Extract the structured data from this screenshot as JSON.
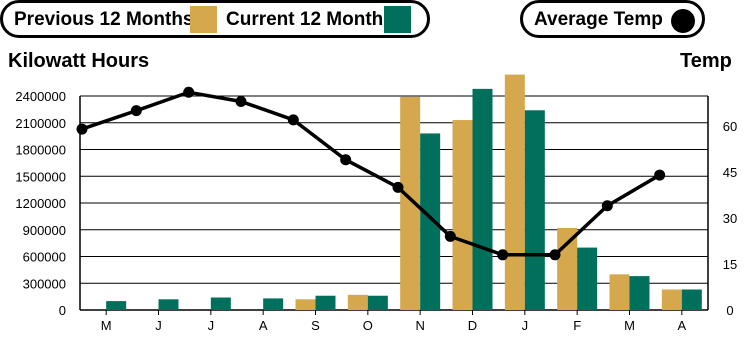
{
  "legend": {
    "previous_label": "Previous 12 Months",
    "current_label": "Current 12 Months",
    "average_label": "Average Temp"
  },
  "colors": {
    "previous": "#d6a84e",
    "current": "#00705c",
    "line": "#000000"
  },
  "chart_data": {
    "type": "bar",
    "categories": [
      "M",
      "J",
      "J",
      "A",
      "S",
      "O",
      "N",
      "D",
      "J",
      "F",
      "M",
      "A"
    ],
    "series": [
      {
        "name": "Previous 12 Months",
        "values": [
          0,
          0,
          0,
          0,
          120000,
          170000,
          2390000,
          2130000,
          2640000,
          920000,
          400000,
          230000
        ]
      },
      {
        "name": "Current 12 Months",
        "values": [
          100000,
          120000,
          140000,
          130000,
          160000,
          160000,
          1980000,
          2480000,
          2240000,
          700000,
          380000,
          230000
        ]
      }
    ],
    "line_series": {
      "name": "Average Temp",
      "values": [
        59,
        65,
        71,
        68,
        62,
        49,
        40,
        24,
        18,
        18,
        34,
        44
      ]
    },
    "ylabel": "Kilowatt Hours",
    "y2label": "Temp",
    "ylim": [
      0,
      2400000
    ],
    "yticks": [
      "0",
      "300000",
      "600000",
      "900000",
      "1200000",
      "1500000",
      "1800000",
      "2100000",
      "2400000"
    ],
    "y2ticks": [
      "0",
      "15",
      "30",
      "45",
      "60"
    ],
    "y2lim": [
      0,
      60
    ],
    "grid": true
  }
}
